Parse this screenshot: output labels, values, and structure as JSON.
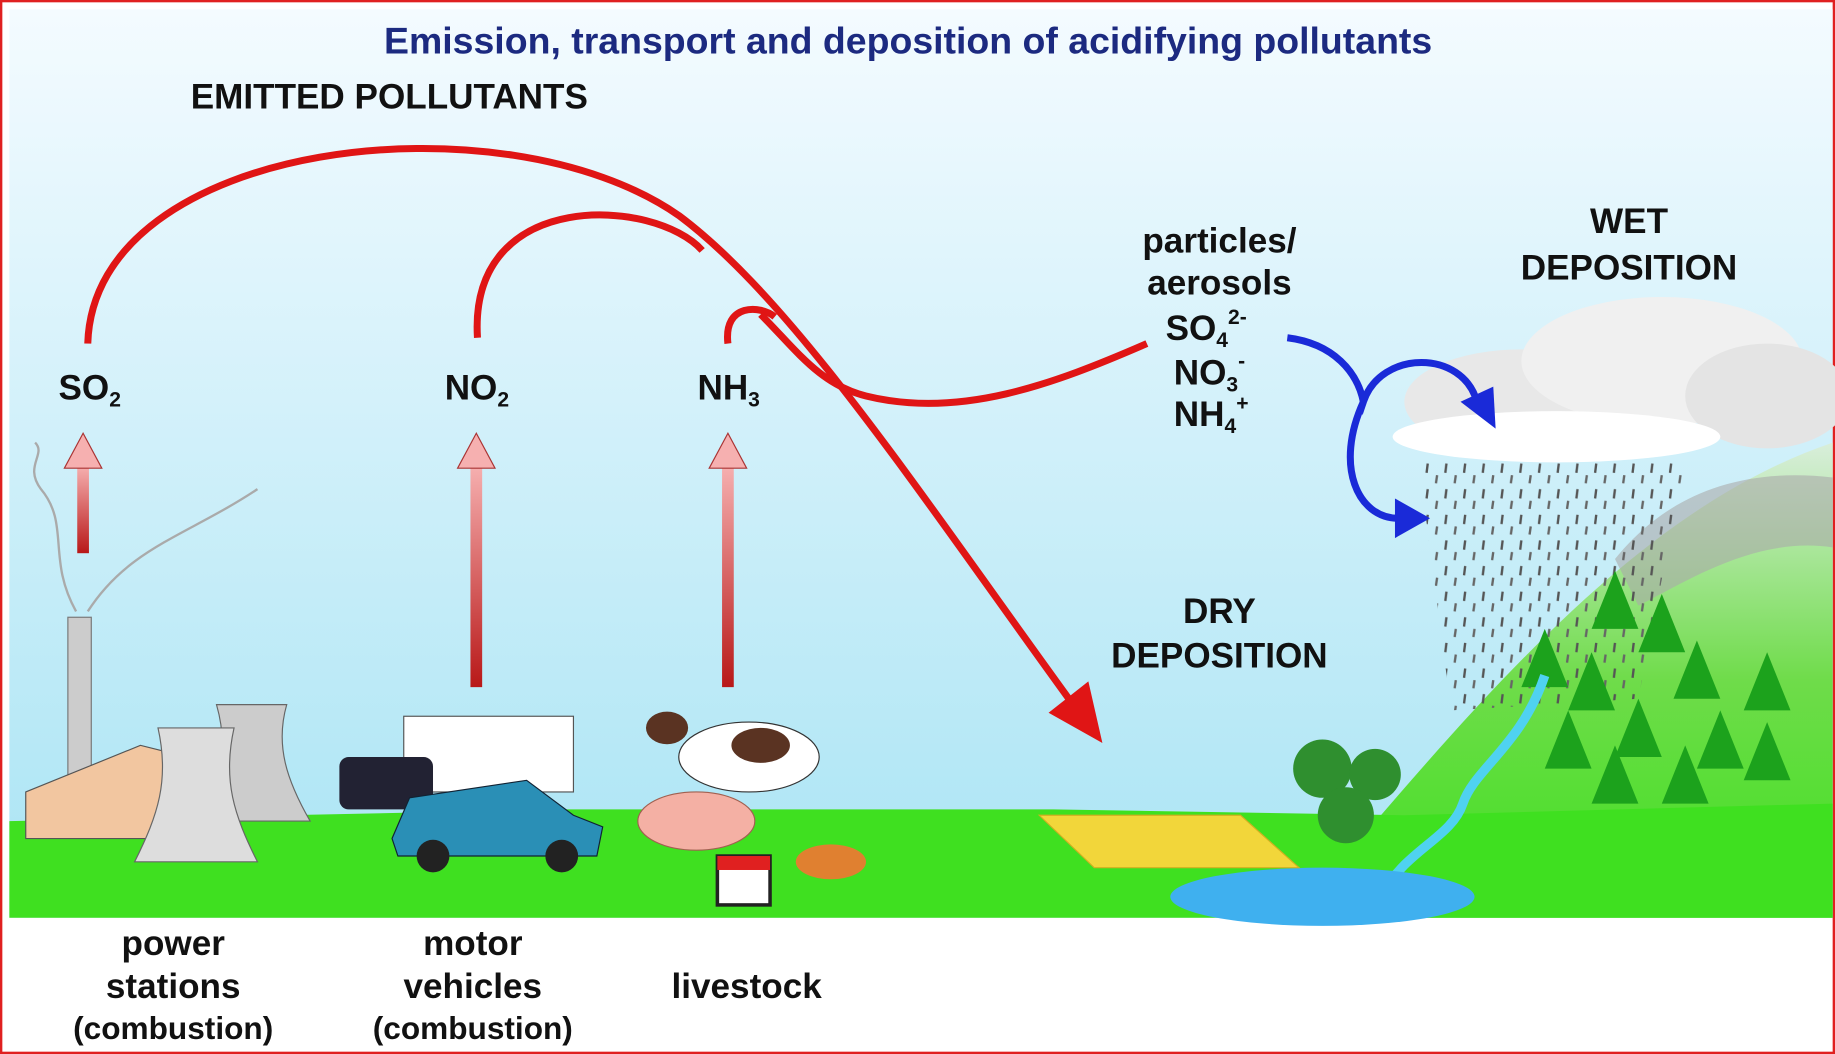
{
  "title": "Emission, transport and deposition of acidifying pollutants",
  "emitted_heading": "EMITTED POLLUTANTS",
  "pollutants": [
    {
      "base": "SO",
      "sub": "2"
    },
    {
      "base": "NO",
      "sub": "2"
    },
    {
      "base": "NH",
      "sub": "3"
    }
  ],
  "sources": [
    [
      "power",
      "stations",
      "(combustion)"
    ],
    [
      "motor",
      "vehicles",
      "(combustion)"
    ],
    [
      "livestock"
    ]
  ],
  "aerosols": {
    "label": [
      "particles/",
      "aerosols"
    ],
    "ions": [
      {
        "base": "SO",
        "sub": "4",
        "sup": "2-"
      },
      {
        "base": "NO",
        "sub": "3",
        "sup": "-"
      },
      {
        "base": "NH",
        "sub": "4",
        "sup": "+"
      }
    ]
  },
  "wet_deposition": [
    "WET",
    "DEPOSITION"
  ],
  "dry_deposition": [
    "DRY",
    "DEPOSITION"
  ]
}
